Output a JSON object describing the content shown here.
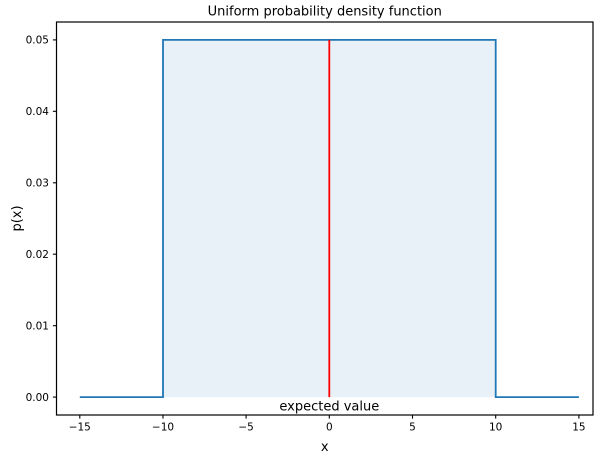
{
  "chart_data": {
    "type": "line",
    "title": "Uniform probability density function",
    "xlabel": "x",
    "ylabel": "p(x)",
    "annotation": {
      "text": "expected value",
      "x": 0,
      "y": -0.0019
    },
    "xlim": [
      -16.4,
      15.85
    ],
    "ylim": [
      -0.0025,
      0.0525
    ],
    "x_ticks": {
      "values": [
        -15,
        -10,
        -5,
        0,
        5,
        10,
        15
      ],
      "labels": [
        "−15",
        "−10",
        "−5",
        "0",
        "5",
        "10",
        "15"
      ]
    },
    "y_ticks": {
      "values": [
        0,
        0.01,
        0.02,
        0.03,
        0.04,
        0.05
      ],
      "labels": [
        "0.00",
        "0.01",
        "0.02",
        "0.03",
        "0.04",
        "0.05"
      ]
    },
    "grid": false,
    "legend": false,
    "axis_color": "#000000",
    "text_color": "#000000",
    "series": [
      {
        "name": "uniform-pdf-line",
        "color": "#1f77b4",
        "linewidth": 1.8,
        "points": [
          [
            -15,
            0
          ],
          [
            -10,
            0
          ],
          [
            -10,
            0.05
          ],
          [
            10,
            0.05
          ],
          [
            10,
            0
          ],
          [
            15,
            0
          ]
        ]
      },
      {
        "name": "expected-value-line",
        "color": "#ff0000",
        "linewidth": 1.8,
        "points": [
          [
            0,
            0
          ],
          [
            0,
            0.05
          ]
        ]
      }
    ],
    "fill": {
      "x0": -10,
      "x1": 10,
      "y0": 0,
      "y1": 0.05,
      "color": "#1f77b4",
      "alpha": 0.1
    }
  }
}
